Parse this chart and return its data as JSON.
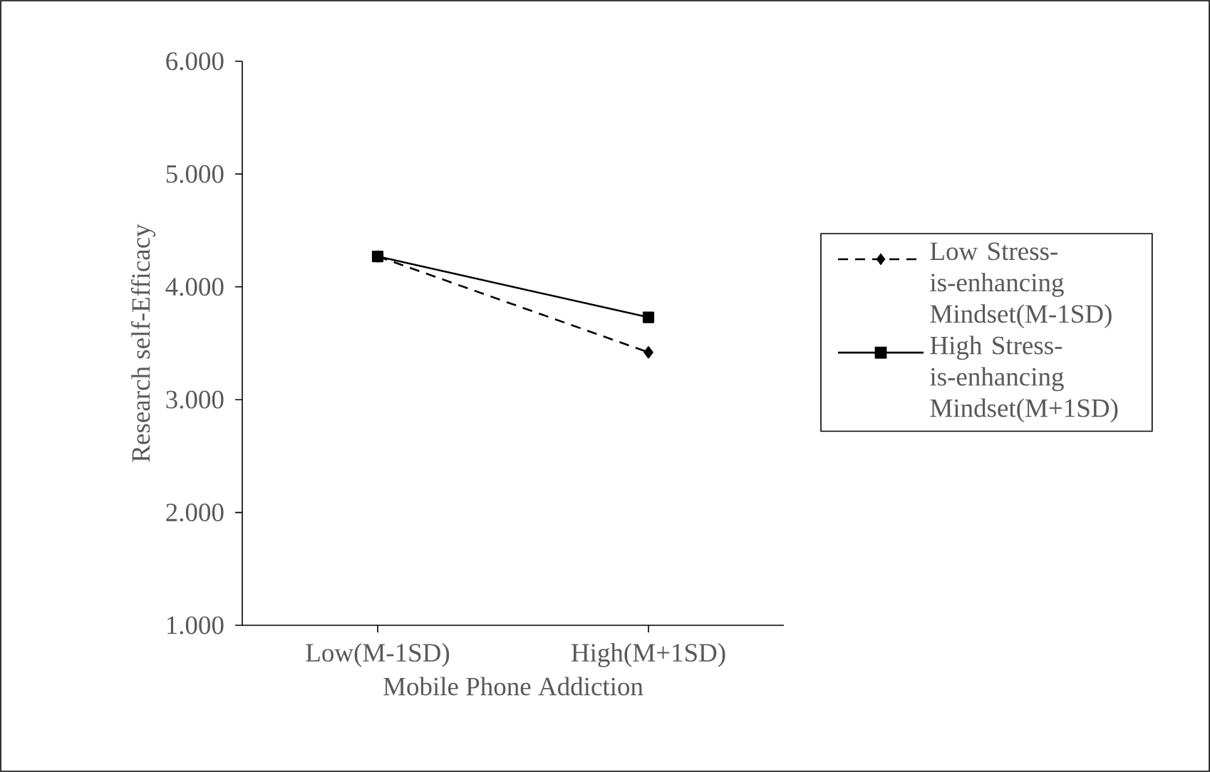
{
  "chart_data": {
    "type": "line",
    "xlabel": "Mobile Phone Addiction",
    "ylabel": "Research self-Efficacy",
    "categories": [
      "Low(M-1SD)",
      "High(M+1SD)"
    ],
    "series": [
      {
        "name": "Low Stress-is-enhancing Mindset(M-1SD)",
        "color": "#000000",
        "values": [
          4.27,
          3.42
        ],
        "marker": "diamond",
        "line_style": "dashed"
      },
      {
        "name": "High Stress-is-enhancing Mindset(M+1SD)",
        "color": "#000000",
        "values": [
          4.27,
          3.73
        ],
        "marker": "square",
        "line_style": "solid"
      }
    ],
    "ylim": [
      1,
      6
    ],
    "yticks": [
      {
        "value": 1,
        "label": "1.000"
      },
      {
        "value": 2,
        "label": "2.000"
      },
      {
        "value": 3,
        "label": "3.000"
      },
      {
        "value": 4,
        "label": "4.000"
      },
      {
        "value": 5,
        "label": "5.000"
      },
      {
        "value": 6,
        "label": "6.000"
      }
    ],
    "grid": false,
    "legend": "right"
  }
}
